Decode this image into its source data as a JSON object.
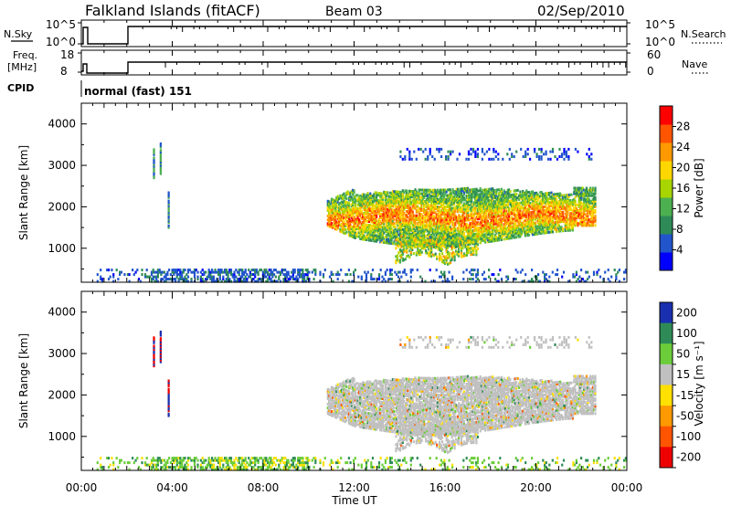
{
  "header": {
    "site": "Falkland Islands (fitACF)",
    "beam": "Beam 03",
    "date": "02/Sep/2010"
  },
  "noise_panel": {
    "left_label": "N.Sky",
    "left_ticks": [
      "10^5",
      "10^0"
    ],
    "right_ticks": [
      "10^5",
      "10^0"
    ],
    "right_label": "N.Search"
  },
  "freq_panel": {
    "left_label_1": "Freq.",
    "left_label_2": "[MHz]",
    "left_ticks": [
      "18",
      "8"
    ],
    "right_ticks": [
      "60",
      "0"
    ],
    "right_label": "Nave"
  },
  "cpid": {
    "label": "CPID",
    "value": "normal (fast) 151"
  },
  "colors": {
    "power_scale": [
      "#0000ff",
      "#2255cc",
      "#2e8b57",
      "#4cb050",
      "#a8d400",
      "#ffd700",
      "#ff9900",
      "#ff5500",
      "#ff0000"
    ],
    "velocity_scale": [
      "#1a2fb0",
      "#2e8b57",
      "#6ccd3a",
      "#c0c0c0",
      "#ffe000",
      "#ff9900",
      "#ff5500",
      "#ee0000"
    ],
    "ground_scatter": "#c0c0c0"
  },
  "chart_data": [
    {
      "type": "heatmap",
      "name": "power",
      "ylabel": "Slant Range [km]",
      "yticks": [
        "4000",
        "3000",
        "2000",
        "1000"
      ],
      "ylim": [
        180,
        4500
      ],
      "xlim_hours": [
        0,
        24
      ],
      "colorbar_label": "Power [dB]",
      "colorbar_ticks": [
        "28",
        "24",
        "20",
        "16",
        "12",
        "8",
        "4"
      ],
      "colorbar_range": [
        0,
        32
      ],
      "echo_regions": [
        {
          "t_start": 10.8,
          "t_end": 22.6,
          "range_min": 1100,
          "range_max": 2600,
          "level": "moderate-strong"
        },
        {
          "t_start": 13.8,
          "t_end": 17.5,
          "range_min": 550,
          "range_max": 1300,
          "level": "moderate"
        },
        {
          "t_start": 14.0,
          "t_end": 22.5,
          "range_min": 3100,
          "range_max": 3450,
          "level": "weak"
        },
        {
          "t_start": 0.0,
          "t_end": 24.0,
          "range_min": 180,
          "range_max": 500,
          "level": "weak"
        }
      ]
    },
    {
      "type": "heatmap",
      "name": "velocity",
      "ylabel": "Slant Range [km]",
      "yticks": [
        "4000",
        "3000",
        "2000",
        "1000"
      ],
      "ylim": [
        180,
        4500
      ],
      "xlim_hours": [
        0,
        24
      ],
      "xticks": [
        "00:00",
        "04:00",
        "08:00",
        "12:00",
        "16:00",
        "20:00",
        "00:00"
      ],
      "xlabel": "Time UT",
      "colorbar_label": "Velocity [m s⁻¹]",
      "colorbar_ticks": [
        "200",
        "100",
        "50",
        "15",
        "-15",
        "-50",
        "-100",
        "-200"
      ],
      "colorbar_range": [
        -250,
        250
      ],
      "dominant_class": "ground scatter"
    }
  ]
}
